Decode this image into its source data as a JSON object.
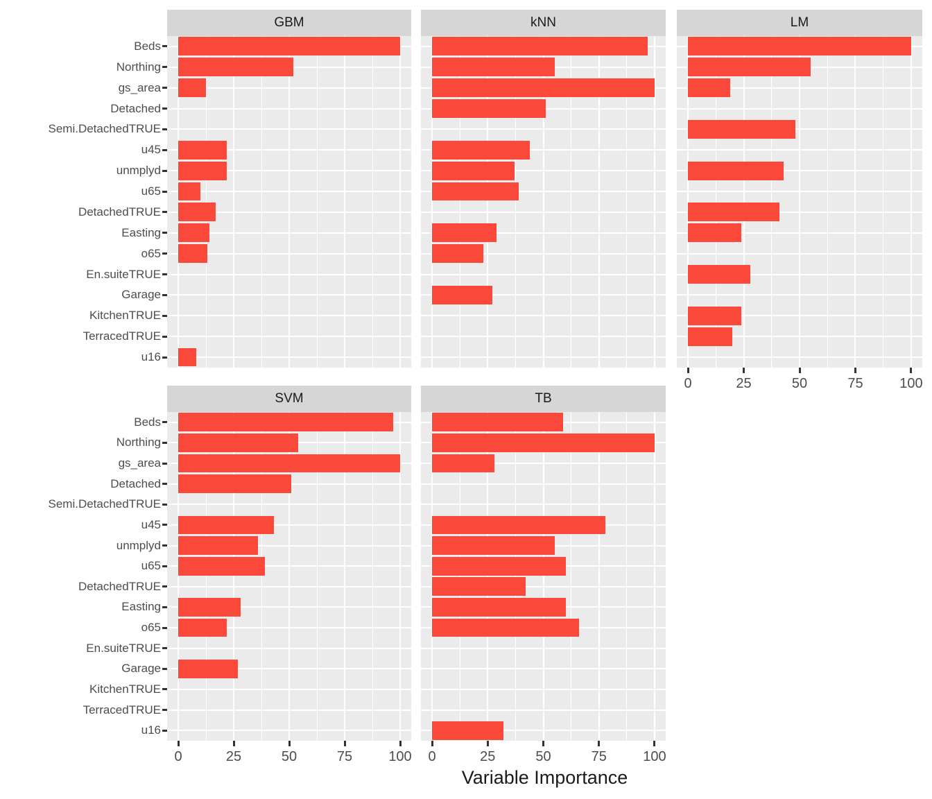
{
  "axis_title": "Variable Importance",
  "colors": {
    "bar": "#fa493a",
    "panel_background": "#ebebeb",
    "strip_background": "#d6d6d6",
    "gridline": "#ffffff",
    "axis_text": "#4d4d4d",
    "strip_text": "#1a1a1a"
  },
  "chart_data": {
    "type": "bar",
    "orientation": "horizontal",
    "xlabel": "Variable Importance",
    "xlim": [
      0,
      100
    ],
    "x_ticks": [
      "0",
      "25",
      "50",
      "75",
      "100"
    ],
    "x_tick_values": [
      0,
      25,
      50,
      75,
      100
    ],
    "grid": "on",
    "legend": "none",
    "categories": [
      "Beds",
      "Northing",
      "gs_area",
      "Detached",
      "Semi.DetachedTRUE",
      "u45",
      "unmplyd",
      "u65",
      "DetachedTRUE",
      "Easting",
      "o65",
      "En.suiteTRUE",
      "Garage",
      "KitchenTRUE",
      "TerracedTRUE",
      "u16"
    ],
    "facets": [
      {
        "name": "GBM",
        "col": 0,
        "row": 0,
        "axis_below": false,
        "values": [
          100,
          52,
          12.5,
          0,
          0,
          22,
          22,
          10,
          17,
          14,
          13,
          0,
          0,
          0,
          0,
          8
        ]
      },
      {
        "name": "kNN",
        "col": 1,
        "row": 0,
        "axis_below": false,
        "values": [
          97,
          55,
          100,
          51,
          0,
          44,
          37,
          39,
          0,
          29,
          23,
          0,
          27,
          0,
          0,
          0
        ]
      },
      {
        "name": "LM",
        "col": 2,
        "row": 0,
        "axis_below": true,
        "values": [
          100,
          55,
          19,
          0,
          48,
          0,
          43,
          0,
          41,
          24,
          0,
          28,
          0,
          24,
          20,
          0
        ]
      },
      {
        "name": "SVM",
        "col": 0,
        "row": 1,
        "axis_below": true,
        "values": [
          97,
          54,
          100,
          51,
          0,
          43,
          36,
          39,
          0,
          28,
          22,
          0,
          27,
          0,
          0,
          0
        ]
      },
      {
        "name": "TB",
        "col": 1,
        "row": 1,
        "axis_below": true,
        "values": [
          59,
          100,
          28,
          0,
          0,
          78,
          55,
          60,
          42,
          60,
          66,
          0,
          0,
          0,
          0,
          32
        ]
      }
    ]
  }
}
